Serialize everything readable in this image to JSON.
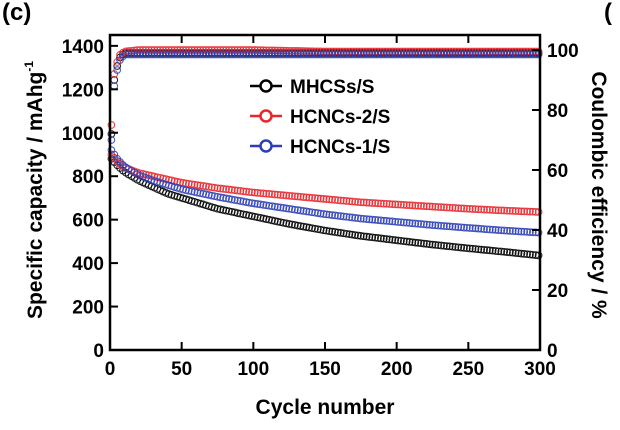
{
  "chart_data": {
    "type": "scatter",
    "panel_labels": {
      "left": "(c)",
      "right": "("
    },
    "xlabel": "Cycle number",
    "ylabel": "Specific capacity / mAhg",
    "ylabel_superscript": "-1",
    "y2label": "Coulombic efficiency / %",
    "xlim": [
      0,
      300
    ],
    "ylim": [
      0,
      1450
    ],
    "y2lim": [
      0,
      105
    ],
    "x_ticks": [
      "0",
      "50",
      "100",
      "150",
      "200",
      "250",
      "300"
    ],
    "y_ticks": [
      "0",
      "200",
      "400",
      "600",
      "800",
      "1000",
      "1200",
      "1400"
    ],
    "y2_ticks": [
      "0",
      "20",
      "40",
      "60",
      "80",
      "100"
    ],
    "legend_position": "upper-center",
    "series": [
      {
        "name": "MHCSs/S",
        "color": "#000000",
        "capacity": {
          "x": [
            1,
            5,
            10,
            20,
            30,
            40,
            50,
            75,
            100,
            125,
            150,
            175,
            200,
            225,
            250,
            275,
            300
          ],
          "y": [
            880,
            850,
            820,
            780,
            750,
            720,
            700,
            650,
            615,
            580,
            550,
            525,
            505,
            485,
            468,
            452,
            435
          ]
        },
        "efficiency": {
          "x": [
            1,
            3,
            6,
            10,
            20,
            50,
            100,
            150,
            200,
            250,
            300
          ],
          "y": [
            72,
            90,
            97,
            99,
            99,
            99,
            99,
            99,
            99,
            99,
            99
          ]
        }
      },
      {
        "name": "HCNCs-2/S",
        "color": "#e8262b",
        "capacity": {
          "x": [
            1,
            5,
            10,
            20,
            30,
            40,
            50,
            75,
            100,
            125,
            150,
            175,
            200,
            225,
            250,
            275,
            300
          ],
          "y": [
            900,
            870,
            840,
            815,
            800,
            785,
            770,
            745,
            725,
            710,
            695,
            680,
            670,
            660,
            650,
            642,
            635
          ]
        },
        "efficiency": {
          "x": [
            1,
            3,
            6,
            10,
            20,
            50,
            100,
            150,
            200,
            250,
            300
          ],
          "y": [
            75,
            92,
            98,
            99.5,
            100,
            100,
            100,
            99.5,
            99.5,
            99.5,
            99.5
          ]
        }
      },
      {
        "name": "HCNCs-1/S",
        "color": "#2e3fb5",
        "capacity": {
          "x": [
            1,
            5,
            10,
            20,
            30,
            40,
            50,
            75,
            100,
            125,
            150,
            175,
            200,
            225,
            250,
            275,
            300
          ],
          "y": [
            920,
            880,
            845,
            805,
            780,
            760,
            740,
            705,
            675,
            650,
            625,
            605,
            590,
            575,
            562,
            550,
            540
          ]
        },
        "efficiency": {
          "x": [
            1,
            3,
            6,
            10,
            20,
            50,
            100,
            150,
            200,
            250,
            300
          ],
          "y": [
            70,
            88,
            96,
            98.5,
            98.5,
            98.5,
            98.5,
            98.5,
            98.5,
            98.5,
            98.5
          ]
        }
      }
    ]
  }
}
